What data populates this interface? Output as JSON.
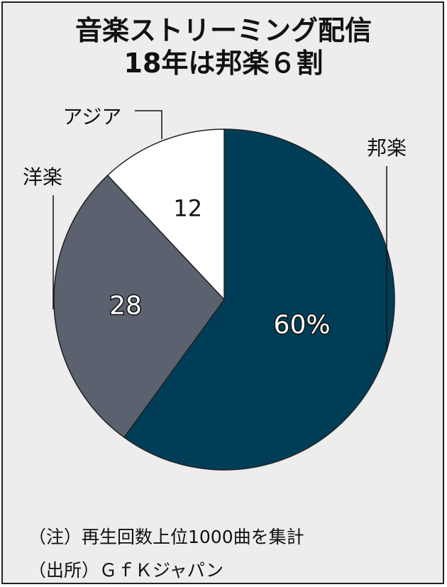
{
  "title": {
    "line1": "音楽ストリーミング配信",
    "line2": "18年は邦楽６割"
  },
  "chart_data": {
    "type": "pie",
    "title": "音楽ストリーミング配信 18年は邦楽６割",
    "start": "12 o'clock",
    "direction": "clockwise",
    "slices": [
      {
        "category": "邦楽",
        "value": 60,
        "value_label": "60%",
        "color": "#003e58"
      },
      {
        "category": "洋楽",
        "value": 28,
        "value_label": "28",
        "color": "#5b616f"
      },
      {
        "category": "アジア",
        "value": 12,
        "value_label": "12",
        "color": "#ffffff"
      }
    ]
  },
  "notes": {
    "note": "（注）再生回数上位1000曲を集計",
    "source": "（出所）ＧｆＫジャパン"
  }
}
